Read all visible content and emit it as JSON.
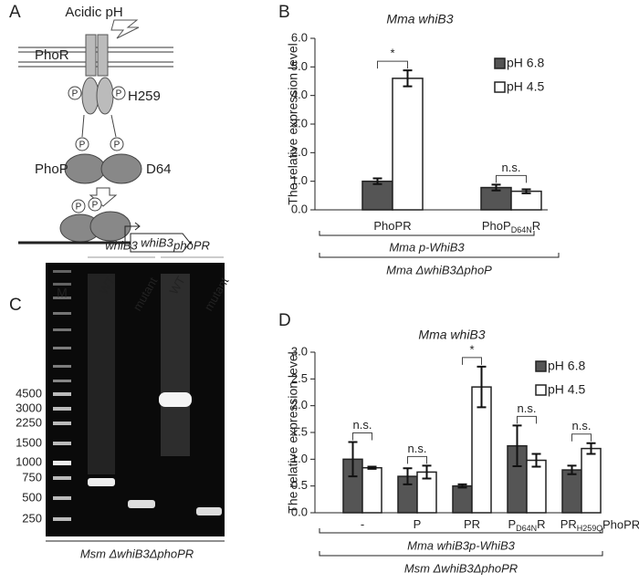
{
  "panel_labels": [
    "A",
    "B",
    "C",
    "D"
  ],
  "diagram": {
    "stimulus": "Acidic pH",
    "kinase": "PhoR",
    "kinase_site": "H259",
    "regulator": "PhoP",
    "regulator_site": "D64",
    "gene": "whiB3",
    "phospho": "P"
  },
  "gel": {
    "group_labels": [
      "whiB3",
      "phoPR"
    ],
    "marker": "M",
    "lanes": [
      "WT",
      "mutant",
      "WT",
      "mutant"
    ],
    "ladder": [
      "4500",
      "3000",
      "2250",
      "1500",
      "1000",
      "750",
      "500",
      "250"
    ],
    "caption": "Msm ΔwhiB3ΔphoPR"
  },
  "chart_data": [
    {
      "type": "bar",
      "title": "Mma whiB3",
      "y_label": "The relative expression level",
      "categories": [
        [
          "PhoPR"
        ],
        [
          "PhoP",
          "D64N",
          "R"
        ]
      ],
      "series": [
        {
          "name": "pH 6.8",
          "color": "#555555",
          "values": [
            1.0,
            0.78
          ],
          "errors": [
            0.1,
            0.1
          ]
        },
        {
          "name": "pH 4.5",
          "color": "#ffffff",
          "values": [
            4.6,
            0.65
          ],
          "errors": [
            0.28,
            0.07
          ]
        }
      ],
      "annotations": [
        "*",
        "n.s."
      ],
      "group_labels": [
        "Mma p-WhiB3",
        "Mma ΔwhiB3ΔphoP"
      ],
      "ylim": [
        0,
        6
      ],
      "yticks": [
        {
          "value": 0,
          "label": "0.0"
        },
        {
          "value": 1,
          "label": "1.0"
        },
        {
          "value": 2,
          "label": "2.0"
        },
        {
          "value": 3,
          "label": "3.0"
        },
        {
          "value": 4,
          "label": "4.0"
        },
        {
          "value": 5,
          "label": "5.0"
        },
        {
          "value": 6,
          "label": "6.0"
        }
      ]
    },
    {
      "type": "bar",
      "title": "Mma whiB3",
      "y_label": "The relative expression level",
      "x_label": "PhoPR",
      "categories": [
        [
          "-"
        ],
        [
          "P"
        ],
        [
          "PR"
        ],
        [
          "P",
          "D64N",
          "R"
        ],
        [
          "PR",
          "H259Q"
        ]
      ],
      "series": [
        {
          "name": "pH 6.8",
          "color": "#555555",
          "values": [
            1.0,
            0.68,
            0.5,
            1.25,
            0.8
          ],
          "errors": [
            0.32,
            0.15,
            0.03,
            0.38,
            0.08
          ]
        },
        {
          "name": "pH 4.5",
          "color": "#ffffff",
          "values": [
            0.84,
            0.76,
            2.35,
            0.98,
            1.2
          ],
          "errors": [
            0.02,
            0.12,
            0.38,
            0.12,
            0.1
          ]
        }
      ],
      "annotations": [
        "n.s.",
        "n.s.",
        "*",
        "n.s.",
        "n.s."
      ],
      "group_labels": [
        "Mma whiB3p-WhiB3",
        "Msm ΔwhiB3ΔphoPR"
      ],
      "ylim": [
        0,
        3
      ],
      "yticks": [
        {
          "value": 0,
          "label": "0.0"
        },
        {
          "value": 0.5,
          "label": "0.5"
        },
        {
          "value": 1,
          "label": "1.0"
        },
        {
          "value": 1.5,
          "label": "1.5"
        },
        {
          "value": 2,
          "label": "2.0"
        },
        {
          "value": 2.5,
          "label": "2.5"
        },
        {
          "value": 3,
          "label": "3.0"
        }
      ]
    }
  ]
}
